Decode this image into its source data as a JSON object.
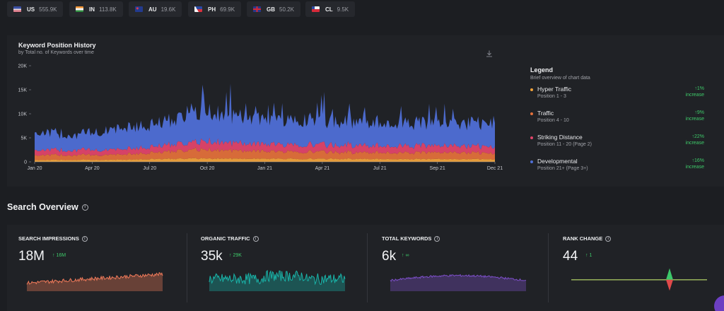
{
  "countries": [
    {
      "code": "US",
      "value": "555.9K",
      "flag": "us-flag-icon"
    },
    {
      "code": "IN",
      "value": "113.8K",
      "flag": "in-flag-icon"
    },
    {
      "code": "AU",
      "value": "19.6K",
      "flag": "au-flag-icon"
    },
    {
      "code": "PH",
      "value": "69.9K",
      "flag": "ph-flag-icon"
    },
    {
      "code": "GB",
      "value": "50.2K",
      "flag": "gb-flag-icon"
    },
    {
      "code": "CL",
      "value": "9.5K",
      "flag": "cl-flag-icon"
    }
  ],
  "chart_card": {
    "title": "Keyword Position History",
    "subtitle": "by Total no. of Keywords over time",
    "download_icon": "download-icon"
  },
  "chart_data": {
    "type": "area",
    "stacked": true,
    "title": "Keyword Position History",
    "subtitle": "by Total no. of Keywords over time",
    "x_ticks": [
      "Jan 20",
      "Apr 20",
      "Jul 20",
      "Oct 20",
      "Jan 21",
      "Apr 21",
      "Jul 21",
      "Sep 21",
      "Dec 21"
    ],
    "y_ticks": [
      "0",
      "5K",
      "10K",
      "15K",
      "20K"
    ],
    "ylim": [
      0,
      20000
    ],
    "grid": false,
    "legend_placement": "right",
    "series": [
      {
        "name": "Hyper Traffic",
        "color": "#f0a23a",
        "values": [
          400,
          420,
          430,
          600,
          700,
          650,
          640,
          620,
          600,
          580,
          560,
          560
        ]
      },
      {
        "name": "Traffic",
        "color": "#e2703a",
        "values": [
          1000,
          1000,
          1050,
          1400,
          1900,
          1650,
          1500,
          1450,
          1400,
          1350,
          1350,
          1300
        ]
      },
      {
        "name": "Striking Distance",
        "color": "#e0456a",
        "values": [
          1100,
          1050,
          1100,
          1300,
          1700,
          1550,
          1500,
          1500,
          1450,
          1450,
          1400,
          1400
        ]
      },
      {
        "name": "Developmental",
        "color": "#4f6fd6",
        "values": [
          3700,
          3200,
          4300,
          4700,
          6200,
          5400,
          5200,
          5000,
          4900,
          4800,
          4700,
          4900
        ]
      }
    ]
  },
  "legend": {
    "title": "Legend",
    "subtitle": "Brief overview of chart data",
    "items": [
      {
        "name": "Hyper Traffic",
        "range": "Position 1 - 3",
        "change": "↑1%",
        "note": "increase",
        "color": "#f0a23a"
      },
      {
        "name": "Traffic",
        "range": "Position 4 - 10",
        "change": "↑9%",
        "note": "increase",
        "color": "#e2703a"
      },
      {
        "name": "Striking Distance",
        "range": "Position 11 - 20 (Page 2)",
        "change": "↑22%",
        "note": "increase",
        "color": "#e0456a"
      },
      {
        "name": "Developmental",
        "range": "Position 21+ (Page 3+)",
        "change": "↑16%",
        "note": "increase",
        "color": "#4f6fd6"
      }
    ]
  },
  "search_overview": {
    "title": "Search Overview",
    "info_icon": "info-icon",
    "stats": [
      {
        "label": "SEARCH IMPRESSIONS",
        "value": "18M",
        "delta": "16M",
        "color": "#f07a5a"
      },
      {
        "label": "ORGANIC TRAFFIC",
        "value": "35k",
        "delta": "29K",
        "color": "#19b3a8"
      },
      {
        "label": "TOTAL KEYWORDS",
        "value": "6k",
        "delta": "∞",
        "color": "#7d4fc9"
      },
      {
        "label": "RANK CHANGE",
        "value": "44",
        "delta": "1",
        "color": "#49b86a"
      }
    ]
  }
}
